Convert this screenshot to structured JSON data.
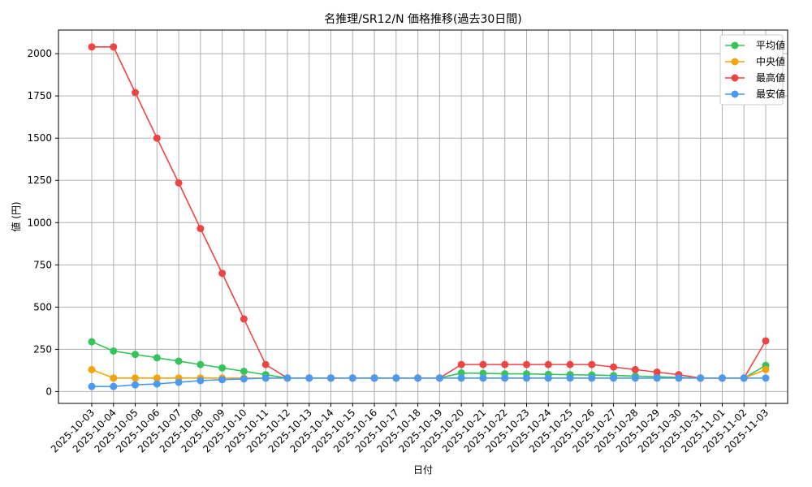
{
  "chart_data": {
    "type": "line",
    "title": "名推理/SR12/N 価格推移(過去30日間)",
    "xlabel": "日付",
    "ylabel": "値 (円)",
    "ylim": [
      -70,
      2140
    ],
    "yticks": [
      0,
      250,
      500,
      750,
      1000,
      1250,
      1500,
      1750,
      2000
    ],
    "grid": true,
    "legend_position": "top-right",
    "x": [
      "2025-10-03",
      "2025-10-04",
      "2025-10-05",
      "2025-10-06",
      "2025-10-07",
      "2025-10-08",
      "2025-10-09",
      "2025-10-10",
      "2025-10-11",
      "2025-10-12",
      "2025-10-13",
      "2025-10-14",
      "2025-10-15",
      "2025-10-16",
      "2025-10-17",
      "2025-10-18",
      "2025-10-19",
      "2025-10-20",
      "2025-10-21",
      "2025-10-22",
      "2025-10-23",
      "2025-10-24",
      "2025-10-25",
      "2025-10-26",
      "2025-10-27",
      "2025-10-28",
      "2025-10-29",
      "2025-10-30",
      "2025-10-31",
      "2025-11-01",
      "2025-11-02",
      "2025-11-03"
    ],
    "series": [
      {
        "name": "平均値",
        "color": "#33c45a",
        "values": [
          295,
          240,
          220,
          200,
          180,
          160,
          140,
          120,
          100,
          80,
          80,
          80,
          80,
          80,
          80,
          80,
          80,
          110,
          108,
          105,
          105,
          102,
          100,
          98,
          95,
          92,
          88,
          84,
          80,
          80,
          80,
          155
        ]
      },
      {
        "name": "中央値",
        "color": "#f5a30a",
        "values": [
          130,
          80,
          80,
          80,
          80,
          80,
          80,
          80,
          80,
          80,
          80,
          80,
          80,
          80,
          80,
          80,
          80,
          80,
          80,
          80,
          80,
          80,
          80,
          80,
          80,
          80,
          80,
          80,
          80,
          80,
          80,
          130
        ]
      },
      {
        "name": "最高値",
        "color": "#ef4444",
        "values": [
          2040,
          2040,
          1770,
          1500,
          1235,
          965,
          700,
          430,
          160,
          80,
          80,
          80,
          80,
          80,
          80,
          80,
          80,
          160,
          160,
          160,
          160,
          160,
          160,
          160,
          145,
          130,
          115,
          100,
          80,
          80,
          80,
          300
        ]
      },
      {
        "name": "最安値",
        "color": "#4a9af3",
        "values": [
          30,
          30,
          40,
          45,
          55,
          65,
          70,
          75,
          80,
          80,
          80,
          80,
          80,
          80,
          80,
          80,
          80,
          80,
          80,
          80,
          80,
          80,
          80,
          80,
          80,
          80,
          80,
          80,
          80,
          80,
          80,
          80
        ]
      }
    ]
  }
}
